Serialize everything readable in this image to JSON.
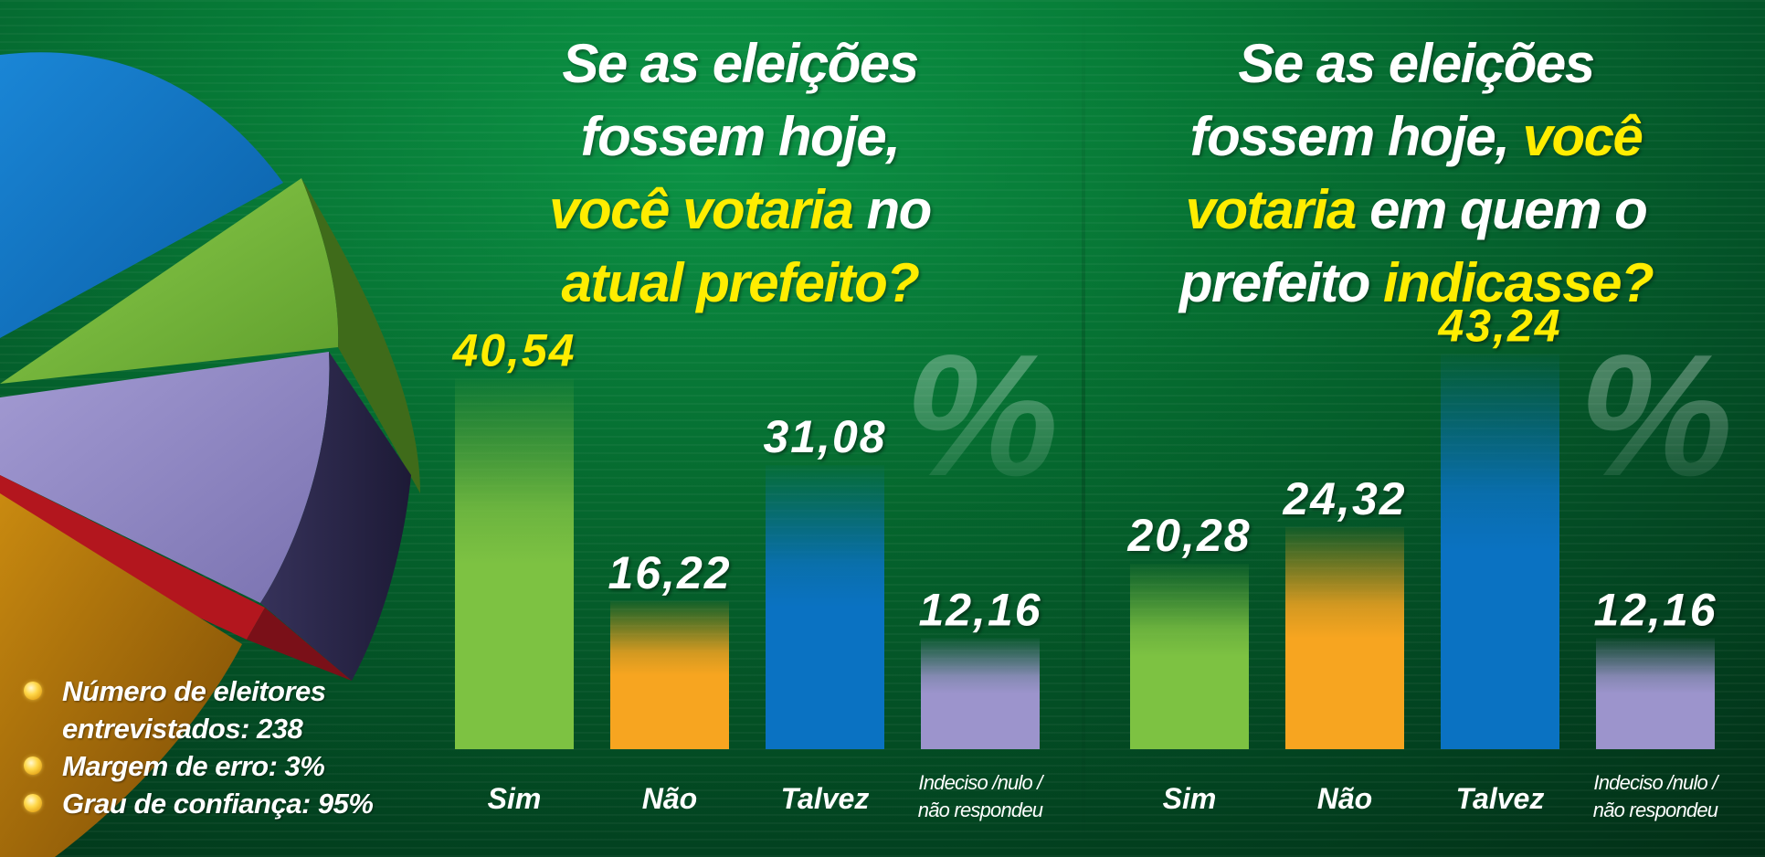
{
  "colors": {
    "sim": "#7dc242",
    "nao": "#f7a520",
    "talvez": "#0a72c2",
    "indeciso": "#9c94cc",
    "highlight": "#ffed00",
    "text": "#ffffff"
  },
  "percent_symbol": "%",
  "chart_data": [
    {
      "type": "bar",
      "title_parts": [
        {
          "text": "Se as eleições",
          "highlight": false,
          "br": true
        },
        {
          "text": "fossem hoje,",
          "highlight": false,
          "br": true
        },
        {
          "text": "você votaria",
          "highlight": true,
          "br": false
        },
        {
          "text": " no",
          "highlight": false,
          "br": true
        },
        {
          "text": "atual prefeito?",
          "highlight": true,
          "br": false
        }
      ],
      "categories": [
        "Sim",
        "Não",
        "Talvez",
        "Indeciso /nulo / não respondeu"
      ],
      "category_lines": [
        [
          "Sim"
        ],
        [
          "Não"
        ],
        [
          "Talvez"
        ],
        [
          "Indeciso /nulo /",
          "não respondeu"
        ]
      ],
      "values": [
        40.54,
        16.22,
        31.08,
        12.16
      ],
      "value_labels": [
        "40,54",
        "16,22",
        "31,08",
        "12,16"
      ],
      "highlight_index": 0
    },
    {
      "type": "bar",
      "title_parts": [
        {
          "text": "Se as eleições",
          "highlight": false,
          "br": true
        },
        {
          "text": "fossem hoje,",
          "highlight": false,
          "br": false
        },
        {
          "text": " você",
          "highlight": true,
          "br": true
        },
        {
          "text": "votaria",
          "highlight": true,
          "br": false
        },
        {
          "text": " em quem o",
          "highlight": false,
          "br": true
        },
        {
          "text": "prefeito ",
          "highlight": false,
          "br": false
        },
        {
          "text": "indicasse?",
          "highlight": true,
          "br": false
        }
      ],
      "categories": [
        "Sim",
        "Não",
        "Talvez",
        "Indeciso /nulo / não respondeu"
      ],
      "category_lines": [
        [
          "Sim"
        ],
        [
          "Não"
        ],
        [
          "Talvez"
        ],
        [
          "Indeciso /nulo /",
          "não respondeu"
        ]
      ],
      "values": [
        20.28,
        24.32,
        43.24,
        12.16
      ],
      "value_labels": [
        "20,28",
        "24,32",
        "43,24",
        "12,16"
      ],
      "highlight_index": 2
    }
  ],
  "notes": [
    "Número de eleitores entrevistados: 238",
    "Margem de erro: 3%",
    "Grau de confiança: 95%"
  ]
}
